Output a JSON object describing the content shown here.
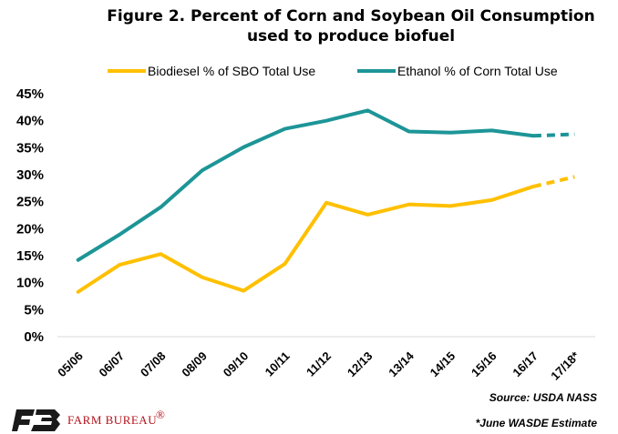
{
  "chart_data": {
    "type": "line",
    "title": "Figure 2. Percent of Corn and Soybean Oil Consumption",
    "subtitle": "used to produce biofuel",
    "categories": [
      "05/06",
      "06/07",
      "07/08",
      "08/09",
      "09/10",
      "10/11",
      "11/12",
      "12/13",
      "13/14",
      "14/15",
      "15/16",
      "16/17",
      "17/18*"
    ],
    "yticks": [
      "0%",
      "5%",
      "10%",
      "15%",
      "20%",
      "25%",
      "30%",
      "35%",
      "40%",
      "45%"
    ],
    "ylim": [
      0,
      45
    ],
    "legend_position": "top",
    "grid": false,
    "estimated_from_index": 11,
    "series": [
      {
        "name": "Biodiesel % of SBO Total Use",
        "color": "#FFC000",
        "values": [
          8.3,
          13.3,
          15.3,
          11.0,
          8.5,
          13.5,
          24.8,
          22.6,
          24.5,
          24.2,
          25.3,
          27.8,
          29.6
        ]
      },
      {
        "name": "Ethanol % of Corn Total Use",
        "color": "#1D9597",
        "values": [
          14.2,
          18.9,
          24.0,
          30.8,
          35.1,
          38.5,
          40.0,
          41.9,
          38.0,
          37.8,
          38.2,
          37.2,
          37.5
        ]
      }
    ]
  },
  "notes": {
    "source": "Source: USDA NASS",
    "estimate": "*June WASDE Estimate"
  },
  "logo": {
    "text": "FARM BUREAU",
    "mark": "®",
    "color": "#b5121b",
    "mark_color": "#1a1a1a"
  }
}
